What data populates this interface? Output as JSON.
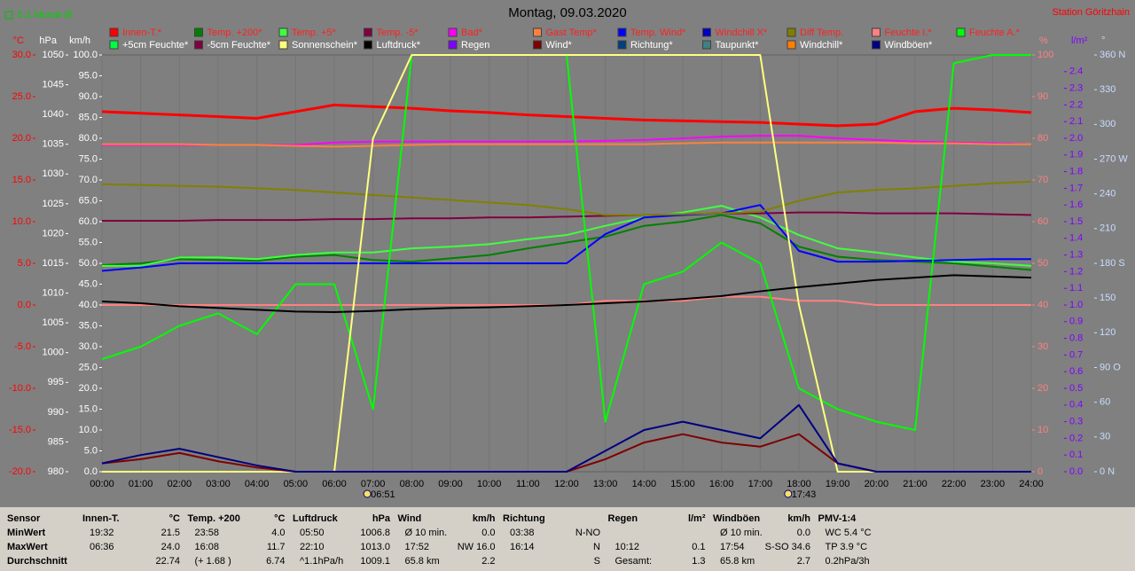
{
  "chart_data": {
    "type": "line",
    "title": "Montag, 09.03.2020",
    "period": "5:1 Monat-Ø",
    "station": "Station Göritzhain",
    "grid": true,
    "x": [
      0,
      1,
      2,
      3,
      4,
      5,
      6,
      7,
      8,
      9,
      10,
      11,
      12,
      13,
      14,
      15,
      16,
      17,
      18,
      19,
      20,
      21,
      22,
      23,
      24
    ],
    "xlim": [
      0,
      24
    ],
    "xticks": [
      {
        "value": 0,
        "label": "00:00"
      },
      {
        "value": 1,
        "label": "01:00"
      },
      {
        "value": 2,
        "label": "02:00"
      },
      {
        "value": 3,
        "label": "03:00"
      },
      {
        "value": 4,
        "label": "04:00"
      },
      {
        "value": 5,
        "label": "05:00"
      },
      {
        "value": 6,
        "label": "06:00"
      },
      {
        "value": 7,
        "label": "07:00"
      },
      {
        "value": 8,
        "label": "08:00"
      },
      {
        "value": 9,
        "label": "09:00"
      },
      {
        "value": 10,
        "label": "10:00"
      },
      {
        "value": 11,
        "label": "11:00"
      },
      {
        "value": 12,
        "label": "12:00"
      },
      {
        "value": 13,
        "label": "13:00"
      },
      {
        "value": 14,
        "label": "14:00"
      },
      {
        "value": 15,
        "label": "15:00"
      },
      {
        "value": 16,
        "label": "16:00"
      },
      {
        "value": 17,
        "label": "17:00"
      },
      {
        "value": 18,
        "label": "18:00"
      },
      {
        "value": 19,
        "label": "19:00"
      },
      {
        "value": 20,
        "label": "20:00"
      },
      {
        "value": 21,
        "label": "21:00"
      },
      {
        "value": 22,
        "label": "22:00"
      },
      {
        "value": 23,
        "label": "23:00"
      },
      {
        "value": 24,
        "label": "24:00"
      }
    ],
    "sunrise": {
      "value": 6.85,
      "label": "06:51"
    },
    "sunset": {
      "value": 17.72,
      "label": "17:43"
    },
    "axes": [
      {
        "key": "temp",
        "side": "left",
        "unit": "°C",
        "color": "#ff0000",
        "lim": [
          -20,
          30
        ],
        "ticks": [
          {
            "value": -20,
            "label": "-20.0"
          },
          {
            "value": -15,
            "label": "-15.0"
          },
          {
            "value": -10,
            "label": "-10.0"
          },
          {
            "value": -5,
            "label": "-5.0"
          },
          {
            "value": 0,
            "label": "0.0"
          },
          {
            "value": 5,
            "label": "5.0"
          },
          {
            "value": 10,
            "label": "10.0"
          },
          {
            "value": 15,
            "label": "15.0"
          },
          {
            "value": 20,
            "label": "20.0"
          },
          {
            "value": 25,
            "label": "25.0"
          },
          {
            "value": 30,
            "label": "30.0"
          }
        ]
      },
      {
        "key": "pressure",
        "side": "left",
        "unit": "hPa",
        "color": "#ffffff",
        "lim": [
          980,
          1050
        ],
        "ticks": [
          980,
          985,
          990,
          995,
          1000,
          1005,
          1010,
          1015,
          1020,
          1025,
          1030,
          1035,
          1040,
          1045,
          1050
        ]
      },
      {
        "key": "wind",
        "side": "left",
        "unit": "km/h",
        "color": "#ffffff",
        "lim": [
          0,
          100
        ],
        "ticks": [
          {
            "value": 0,
            "label": "0.0"
          },
          {
            "value": 5,
            "label": "5.0"
          },
          {
            "value": 10,
            "label": "10.0"
          },
          {
            "value": 15,
            "label": "15.0"
          },
          {
            "value": 20,
            "label": "20.0"
          },
          {
            "value": 25,
            "label": "25.0"
          },
          {
            "value": 30,
            "label": "30.0"
          },
          {
            "value": 35,
            "label": "35.0"
          },
          {
            "value": 40,
            "label": "40.0"
          },
          {
            "value": 45,
            "label": "45.0"
          },
          {
            "value": 50,
            "label": "50.0"
          },
          {
            "value": 55,
            "label": "55.0"
          },
          {
            "value": 60,
            "label": "60.0"
          },
          {
            "value": 65,
            "label": "65.0"
          },
          {
            "value": 70,
            "label": "70.0"
          },
          {
            "value": 75,
            "label": "75.0"
          },
          {
            "value": 80,
            "label": "80.0"
          },
          {
            "value": 85,
            "label": "85.0"
          },
          {
            "value": 90,
            "label": "90.0"
          },
          {
            "value": 95,
            "label": "95.0"
          },
          {
            "value": 100,
            "label": "100.0"
          }
        ]
      },
      {
        "key": "humidity",
        "side": "right",
        "unit": "%",
        "color": "#ff8080",
        "lim": [
          0,
          100
        ],
        "ticks": [
          0,
          10,
          20,
          30,
          40,
          50,
          60,
          70,
          80,
          90,
          100
        ]
      },
      {
        "key": "rain",
        "side": "right",
        "unit": "l/m²",
        "color": "#8000ff",
        "lim": [
          0,
          2.5
        ],
        "ticks": [
          {
            "value": 0,
            "label": "0.0"
          },
          0.1,
          0.2,
          0.3,
          0.4,
          0.5,
          0.6,
          0.7,
          0.8,
          0.9,
          {
            "value": 1,
            "label": "1.0"
          },
          1.1,
          1.2,
          1.3,
          1.4,
          1.5,
          1.6,
          1.7,
          1.8,
          1.9,
          {
            "value": 2,
            "label": "2.0"
          },
          2.1,
          2.2,
          2.3,
          2.4
        ]
      },
      {
        "key": "direction",
        "side": "right",
        "unit": "°",
        "color": "#c8dcff",
        "lim": [
          0,
          360
        ],
        "ticks": [
          {
            "value": 0,
            "label": "0 N"
          },
          30,
          60,
          {
            "value": 90,
            "label": "90 O"
          },
          120,
          150,
          {
            "value": 180,
            "label": "180 S"
          },
          210,
          240,
          {
            "value": 270,
            "label": "270 W"
          },
          300,
          330,
          {
            "value": 360,
            "label": "360 N"
          }
        ]
      }
    ],
    "series": [
      {
        "name": "Innen-T.*",
        "color": "#ff0000",
        "axis": "temp",
        "values": [
          23.2,
          23.0,
          22.8,
          22.6,
          22.4,
          23.2,
          24.0,
          23.8,
          23.6,
          23.3,
          23.1,
          22.8,
          22.6,
          22.4,
          22.2,
          22.1,
          22.0,
          21.9,
          21.7,
          21.5,
          21.7,
          23.2,
          23.6,
          23.4,
          23.1
        ]
      },
      {
        "name": "Temp. +200*",
        "color": "#008000",
        "axis": "temp",
        "values": [
          4.8,
          5.0,
          5.5,
          5.4,
          5.3,
          5.8,
          6.0,
          5.4,
          5.2,
          5.6,
          6.0,
          6.8,
          7.5,
          8.2,
          9.5,
          10.0,
          10.8,
          9.8,
          7.0,
          5.8,
          5.4,
          5.2,
          5.0,
          4.6,
          4.2
        ]
      },
      {
        "name": "Temp. +5*",
        "color": "#40ff40",
        "axis": "temp",
        "values": [
          4.7,
          4.7,
          5.7,
          5.7,
          5.5,
          6.0,
          6.3,
          6.3,
          6.8,
          7.0,
          7.3,
          7.9,
          8.4,
          9.5,
          10.5,
          11.1,
          11.9,
          10.5,
          8.4,
          6.8,
          6.3,
          5.7,
          5.2,
          5.0,
          4.7
        ]
      },
      {
        "name": "Temp. -5*",
        "color": "#800040",
        "axis": "temp",
        "values": [
          10.1,
          10.1,
          10.1,
          10.2,
          10.2,
          10.2,
          10.3,
          10.3,
          10.4,
          10.4,
          10.5,
          10.5,
          10.6,
          10.7,
          10.8,
          10.9,
          11.0,
          11.0,
          11.1,
          11.1,
          11.0,
          11.0,
          11.0,
          10.9,
          10.8
        ]
      },
      {
        "name": "Bad*",
        "color": "#ff00ff",
        "axis": "temp",
        "values": [
          19.2,
          19.2,
          19.2,
          19.2,
          19.2,
          19.2,
          19.5,
          19.6,
          19.6,
          19.6,
          19.6,
          19.6,
          19.6,
          19.7,
          19.8,
          20.0,
          20.2,
          20.3,
          20.3,
          20.0,
          19.8,
          19.6,
          19.5,
          19.4,
          19.3
        ]
      },
      {
        "name": "Gast Temp*",
        "color": "#ff8040",
        "axis": "temp",
        "values": [
          19.3,
          19.3,
          19.3,
          19.2,
          19.2,
          19.1,
          19.0,
          19.1,
          19.2,
          19.3,
          19.3,
          19.3,
          19.3,
          19.3,
          19.3,
          19.4,
          19.5,
          19.5,
          19.5,
          19.5,
          19.5,
          19.4,
          19.4,
          19.3,
          19.3
        ]
      },
      {
        "name": "Temp. Wind*",
        "color": "#0000ff",
        "axis": "temp",
        "values": [
          4.1,
          4.5,
          5.0,
          5.0,
          5.0,
          5.0,
          5.0,
          5.0,
          5.0,
          5.0,
          5.0,
          5.0,
          5.0,
          8.5,
          10.5,
          10.8,
          11.0,
          12.0,
          6.5,
          5.2,
          5.2,
          5.3,
          5.4,
          5.5,
          5.5
        ]
      },
      {
        "name": "Windchill X*",
        "color": "#0000c0"
      },
      {
        "name": "Diff Temp.",
        "color": "#808000",
        "axis": "temp",
        "values": [
          14.5,
          14.4,
          14.3,
          14.2,
          14.0,
          13.8,
          13.5,
          13.2,
          12.9,
          12.6,
          12.3,
          12.0,
          11.5,
          10.8,
          10.8,
          10.9,
          11.0,
          11.2,
          12.5,
          13.5,
          13.8,
          14.0,
          14.3,
          14.6,
          14.8
        ]
      },
      {
        "name": "Feuchte I.*",
        "color": "#ff8080",
        "axis": "humidity",
        "values": [
          40,
          40,
          40,
          40,
          40,
          40,
          40,
          40,
          40,
          40,
          40,
          40,
          40,
          41,
          41,
          41,
          42,
          42,
          41,
          41,
          40,
          40,
          40,
          40,
          40
        ]
      },
      {
        "name": "Feuchte A.*",
        "color": "#00ff00",
        "axis": "humidity",
        "values": [
          27,
          30,
          35,
          38,
          33,
          45,
          45,
          15,
          100,
          100,
          100,
          100,
          100,
          12,
          45,
          48,
          55,
          50,
          20,
          15,
          12,
          10,
          98,
          100,
          100
        ]
      },
      {
        "name": "+5cm Feuchte*",
        "color": "#00ff40"
      },
      {
        "name": "-5cm Feuchte*",
        "color": "#800040"
      },
      {
        "name": "Sonnenschein*",
        "color": "#ffff80",
        "axis": "humidity",
        "values": [
          0,
          0,
          0,
          0,
          0,
          0,
          0,
          80,
          100,
          100,
          100,
          100,
          100,
          100,
          100,
          100,
          100,
          100,
          40,
          0,
          0,
          0,
          0,
          0,
          0
        ]
      },
      {
        "name": "Luftdruck*",
        "color": "#000000",
        "axis": "pressure",
        "values": [
          1008.6,
          1008.3,
          1007.8,
          1007.5,
          1007.2,
          1006.9,
          1006.8,
          1007.0,
          1007.3,
          1007.5,
          1007.6,
          1007.8,
          1008.0,
          1008.3,
          1008.6,
          1009.0,
          1009.5,
          1010.3,
          1011.0,
          1011.6,
          1012.2,
          1012.6,
          1013.0,
          1012.8,
          1012.6
        ]
      },
      {
        "name": "Regen",
        "color": "#8000ff"
      },
      {
        "name": "Wind*",
        "color": "#800000",
        "axis": "wind",
        "values": [
          2,
          3,
          4.5,
          2.5,
          1,
          0,
          0,
          0,
          0,
          0,
          0,
          0,
          0,
          3,
          7,
          9,
          7,
          6,
          9,
          2,
          0,
          0,
          0,
          0,
          0
        ]
      },
      {
        "name": "Richtung*",
        "color": "#004080"
      },
      {
        "name": "Taupunkt*",
        "color": "#408080"
      },
      {
        "name": "Windchill*",
        "color": "#ff8000"
      },
      {
        "name": "Windböen*",
        "color": "#000080",
        "axis": "wind",
        "values": [
          2,
          4,
          5.5,
          3.5,
          1.5,
          0,
          0,
          0,
          0,
          0,
          0,
          0,
          0,
          5,
          10,
          12,
          10,
          8,
          16,
          2,
          0,
          0,
          0,
          0,
          0
        ]
      }
    ]
  },
  "stats": {
    "sensor": [
      "Sensor",
      "MinWert",
      "MaxWert",
      "Durchschnitt"
    ],
    "groups": [
      {
        "title": "Innen-T.",
        "unit": "°C",
        "rows": [
          [
            "19:32",
            "21.5"
          ],
          [
            "06:36",
            "24.0"
          ],
          [
            "22.74"
          ]
        ]
      },
      {
        "title": "Temp. +200",
        "unit": "°C",
        "rows": [
          [
            "23:58",
            "4.0"
          ],
          [
            "16:08",
            "11.7"
          ],
          [
            "(+ 1.68 )",
            "6.74"
          ]
        ]
      },
      {
        "title": "Luftdruck",
        "unit": "hPa",
        "rows": [
          [
            "05:50",
            "1006.8"
          ],
          [
            "22:10",
            "1013.0"
          ],
          [
            "^1.1hPa/h",
            "1009.1"
          ]
        ]
      },
      {
        "title": "Wind",
        "unit": "km/h",
        "rows": [
          [
            "Ø 10 min.",
            "0.0"
          ],
          [
            "17:52",
            "NW 16.0"
          ],
          [
            "65.8 km",
            "2.2"
          ]
        ]
      },
      {
        "title": "Richtung",
        "rows": [
          [
            "03:38",
            "N-NO"
          ],
          [
            "16:14",
            "N"
          ],
          [
            "S"
          ]
        ]
      },
      {
        "title": "Regen",
        "unit": "l/m²",
        "rows": [
          [],
          [
            "10:12",
            "0.1"
          ],
          [
            "Gesamt:",
            "1.3"
          ]
        ]
      },
      {
        "title": "Windböen",
        "unit": "km/h",
        "rows": [
          [
            "Ø 10 min.",
            "0.0"
          ],
          [
            "17:54",
            "S-SO 34.6"
          ],
          [
            "65.8 km",
            "2.7"
          ]
        ]
      },
      {
        "title": "PMV-1:4",
        "rows": [
          [
            "WC 5.4 °C"
          ],
          [
            "TP 3.9 °C"
          ],
          [
            "0.2hPa/3h"
          ]
        ]
      }
    ]
  }
}
